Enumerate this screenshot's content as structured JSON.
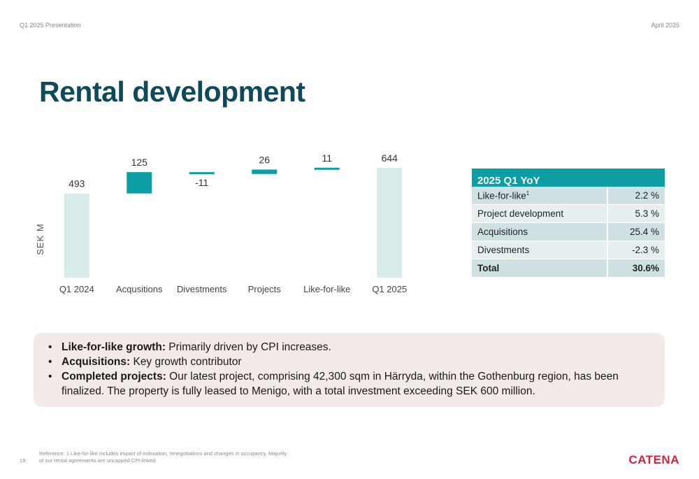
{
  "header": {
    "left": "Q1 2025 Presentation",
    "right": "April 2025"
  },
  "title": "Rental development",
  "chart_data": {
    "type": "waterfall",
    "ylabel": "SEK M",
    "categories": [
      "Q1 2024",
      "Acqusitions",
      "Divestments",
      "Projects",
      "Like-for-like",
      "Q1 2025"
    ],
    "values": [
      493,
      125,
      -11,
      26,
      11,
      644
    ],
    "labels": [
      "493",
      "125",
      "-11",
      "26",
      "11",
      "644"
    ],
    "kinds": [
      "total",
      "delta",
      "delta",
      "delta",
      "delta",
      "total"
    ],
    "colors": {
      "total": "#d7ebe9",
      "delta": "#0d9ea3",
      "text": "#333333"
    },
    "ylim": [
      0,
      680
    ],
    "grid": false,
    "legend": "none"
  },
  "yoy_table": {
    "header": "2025 Q1 YoY",
    "rows": [
      {
        "label": "Like-for-like",
        "sup": "1",
        "value": "2.2 %"
      },
      {
        "label": "Project development",
        "sup": "",
        "value": "5.3 %"
      },
      {
        "label": "Acquisitions",
        "sup": "",
        "value": "25.4 %"
      },
      {
        "label": "Divestments",
        "sup": "",
        "value": "-2.3 %"
      },
      {
        "label": "Total",
        "sup": "",
        "value": "30.6%"
      }
    ]
  },
  "bullets": [
    {
      "bold": "Like-for-like growth:",
      "text": " Primarily driven by CPI increases."
    },
    {
      "bold": "Acquisitions:",
      "text": " Key growth contributor"
    },
    {
      "bold": "Completed projects:",
      "text": " Our latest project, comprising 42,300 sqm in Härryda, within the Gothenburg region, has been finalized. The property is fully leased to Menigo, with a total investment exceeding SEK 600 million."
    }
  ],
  "bullet_symbol": "•",
  "footer": {
    "reference": "Reference: 1 Like-for-like includes impact of indexation, renegotiations and changes in occupancy. Majority of our rental agreements are uncapped CPI-linked",
    "page_number": "19",
    "logo": "CATENA"
  }
}
